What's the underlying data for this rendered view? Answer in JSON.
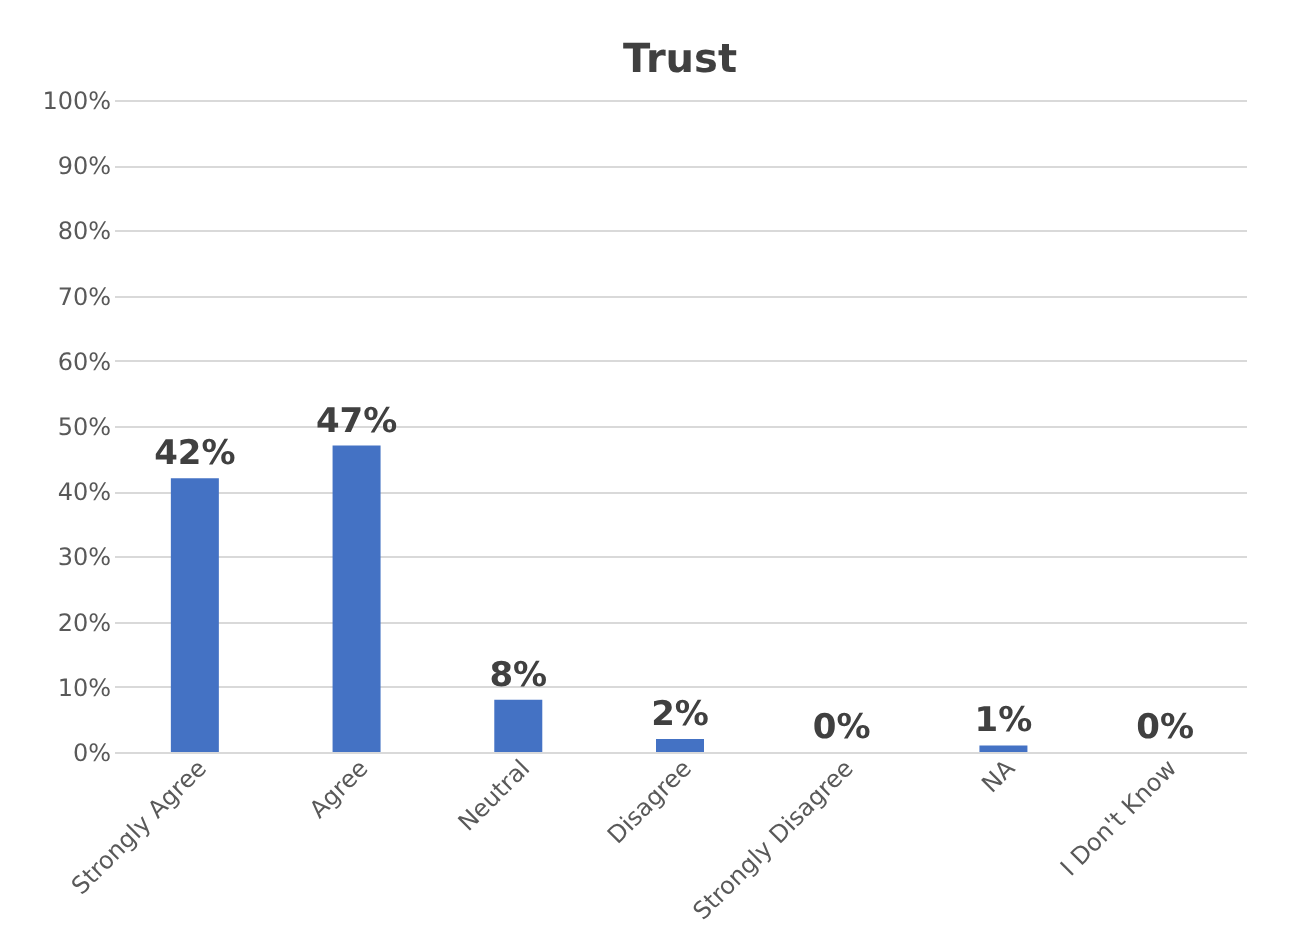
{
  "chart_data": {
    "type": "bar",
    "title": "Trust",
    "categories": [
      "Strongly Agree",
      "Agree",
      "Neutral",
      "Disagree",
      "Strongly Disagree",
      "NA",
      "I Don't Know"
    ],
    "values": [
      42,
      47,
      8,
      2,
      0,
      1,
      0
    ],
    "value_labels": [
      "42%",
      "47%",
      "8%",
      "2%",
      "0%",
      "1%",
      "0%"
    ],
    "color": "#4472c4",
    "ylim": [
      0,
      100
    ],
    "yticks": [
      {
        "value": 0,
        "label": "0%"
      },
      {
        "value": 10,
        "label": "10%"
      },
      {
        "value": 20,
        "label": "20%"
      },
      {
        "value": 30,
        "label": "30%"
      },
      {
        "value": 40,
        "label": "40%"
      },
      {
        "value": 50,
        "label": "50%"
      },
      {
        "value": 60,
        "label": "60%"
      },
      {
        "value": 70,
        "label": "70%"
      },
      {
        "value": 80,
        "label": "80%"
      },
      {
        "value": 90,
        "label": "90%"
      },
      {
        "value": 100,
        "label": "100%"
      }
    ],
    "grid": "y"
  }
}
